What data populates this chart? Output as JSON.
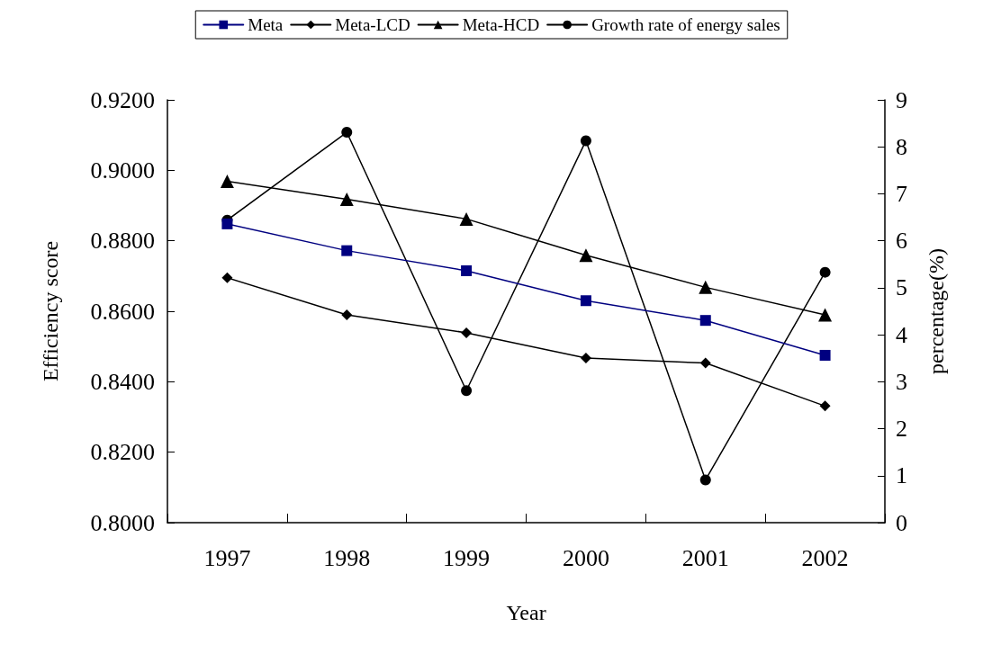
{
  "chart_data": {
    "type": "line",
    "xlabel": "Year",
    "ylabel": "Efficiency score",
    "y2label": "percentage(%)",
    "categories": [
      "1997",
      "1998",
      "1999",
      "2000",
      "2001",
      "2002"
    ],
    "series": [
      {
        "name": "Meta",
        "color": "#000080",
        "marker": "square",
        "values": [
          0.8848,
          0.8772,
          0.8715,
          0.863,
          0.8574,
          0.8475
        ]
      },
      {
        "name": "Meta-LCD",
        "color": "#000000",
        "marker": "diamond",
        "values": [
          0.8695,
          0.859,
          0.8539,
          0.8467,
          0.8453,
          0.8331
        ]
      },
      {
        "name": "Meta-HCD",
        "color": "#000000",
        "marker": "triangle",
        "values": [
          0.8969,
          0.8918,
          0.8862,
          0.8759,
          0.8668,
          0.859
        ]
      },
      {
        "name": "Growth rate of energy sales",
        "color": "#000000",
        "marker": "circle",
        "axis": "y2",
        "values": [
          6.44,
          8.31,
          2.81,
          8.13,
          0.91,
          5.33
        ]
      }
    ],
    "ylim": [
      0.8,
      0.92
    ],
    "yticks": [
      {
        "value": 0.8,
        "label": "0.8000"
      },
      {
        "value": 0.82,
        "label": "0.8200"
      },
      {
        "value": 0.84,
        "label": "0.8400"
      },
      {
        "value": 0.86,
        "label": "0.8600"
      },
      {
        "value": 0.88,
        "label": "0.8800"
      },
      {
        "value": 0.9,
        "label": "0.9000"
      },
      {
        "value": 0.92,
        "label": "0.9200"
      }
    ],
    "y2lim": [
      0,
      9
    ],
    "y2ticks": [
      0,
      1,
      2,
      3,
      4,
      5,
      6,
      7,
      8,
      9
    ],
    "grid": false,
    "legend": "top",
    "line_style": "solid"
  }
}
